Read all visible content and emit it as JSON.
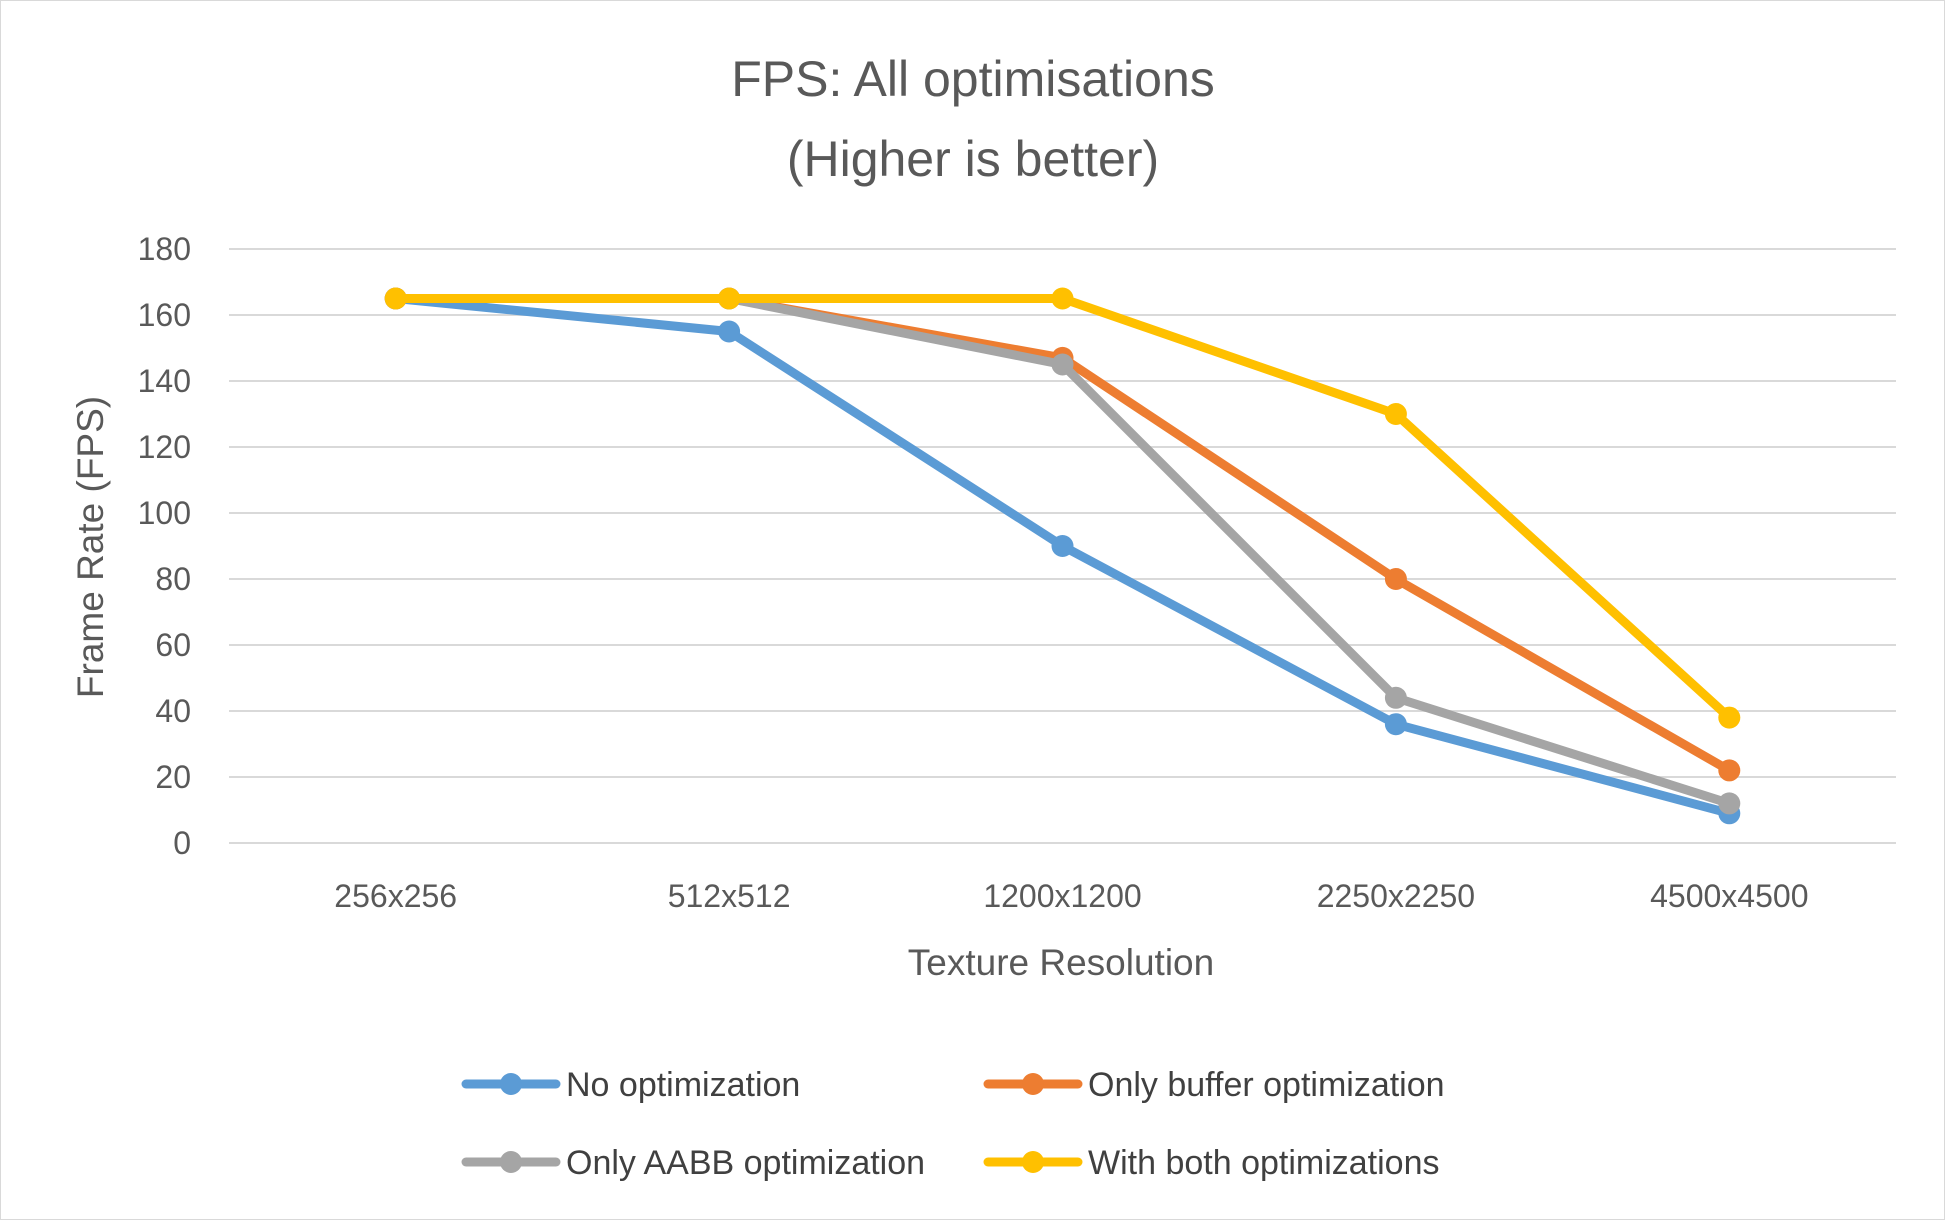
{
  "chart_data": {
    "type": "line",
    "title_lines": [
      "FPS: All optimisations",
      "(Higher is better)"
    ],
    "xlabel": "Texture Resolution",
    "ylabel": "Frame Rate (FPS)",
    "categories": [
      "256x256",
      "512x512",
      "1200x1200",
      "2250x2250",
      "4500x4500"
    ],
    "ylim": [
      0,
      180
    ],
    "yticks": [
      0,
      20,
      40,
      60,
      80,
      100,
      120,
      140,
      160,
      180
    ],
    "grid": true,
    "legend_position": "bottom",
    "series": [
      {
        "name": "No optimization",
        "color": "#5b9bd5",
        "values": [
          165,
          155,
          90,
          36,
          9
        ]
      },
      {
        "name": "Only buffer optimization",
        "color": "#ed7d31",
        "values": [
          165,
          165,
          147,
          80,
          22
        ]
      },
      {
        "name": "Only AABB optimization",
        "color": "#a5a5a5",
        "values": [
          165,
          165,
          145,
          44,
          12
        ]
      },
      {
        "name": "With both optimizations",
        "color": "#ffc000",
        "values": [
          165,
          165,
          165,
          130,
          38
        ]
      }
    ]
  }
}
